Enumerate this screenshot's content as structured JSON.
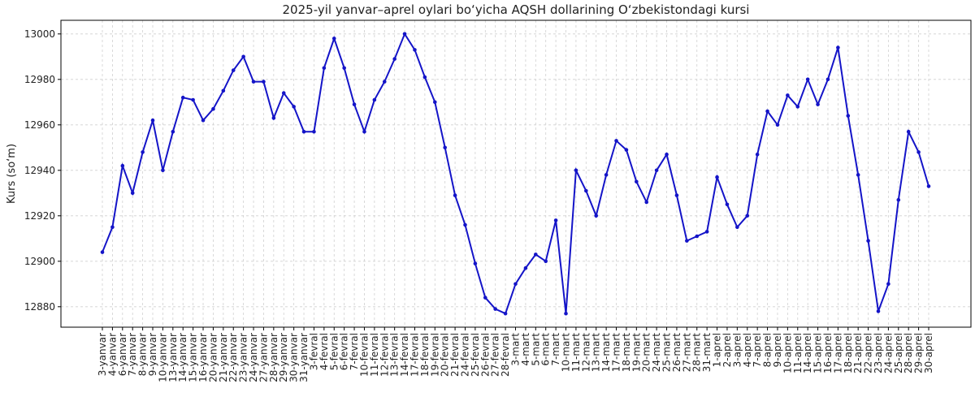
{
  "chart_data": {
    "type": "line",
    "title": "2025-yil yanvar–aprel oylari bo‘yicha AQSH dollarining O‘zbekistondagi kursi",
    "y_label": "Kurs (so‘m)",
    "categories": [
      "3-yanvar",
      "4-yanvar",
      "6-yanvar",
      "7-yanvar",
      "8-yanvar",
      "9-yanvar",
      "10-yanvar",
      "13-yanvar",
      "14-yanvar",
      "15-yanvar",
      "16-yanvar",
      "20-yanvar",
      "21-yanvar",
      "22-yanvar",
      "23-yanvar",
      "24-yanvar",
      "27-yanvar",
      "28-yanvar",
      "29-yanvar",
      "30-yanvar",
      "31-yanvar",
      "3-fevral",
      "4-fevral",
      "5-fevral",
      "6-fevral",
      "7-fevral",
      "10-fevral",
      "11-fevral",
      "12-fevral",
      "13-fevral",
      "14-fevral",
      "17-fevral",
      "18-fevral",
      "19-fevral",
      "20-fevral",
      "21-fevral",
      "24-fevral",
      "25-fevral",
      "26-fevral",
      "27-fevral",
      "28-fevral",
      "3-mart",
      "4-mart",
      "5-mart",
      "6-mart",
      "7-mart",
      "10-mart",
      "11-mart",
      "12-mart",
      "13-mart",
      "14-mart",
      "17-mart",
      "18-mart",
      "19-mart",
      "20-mart",
      "24-mart",
      "25-mart",
      "26-mart",
      "27-mart",
      "28-mart",
      "31-mart",
      "1-aprel",
      "2-aprel",
      "3-aprel",
      "4-aprel",
      "7-aprel",
      "8-aprel",
      "9-aprel",
      "10-aprel",
      "11-aprel",
      "14-aprel",
      "15-aprel",
      "16-aprel",
      "17-aprel",
      "18-aprel",
      "21-aprel",
      "22-aprel",
      "23-aprel",
      "24-aprel",
      "25-aprel",
      "28-aprel",
      "29-aprel",
      "30-aprel"
    ],
    "series": [
      {
        "name": "Kurs",
        "color": "#1414c8",
        "values": [
          12904,
          12915,
          12942,
          12930,
          12948,
          12962,
          12940,
          12957,
          12972,
          12971,
          12962,
          12967,
          12975,
          12984,
          12990,
          12979,
          12979,
          12963,
          12974,
          12968,
          12957,
          12957,
          12985,
          12998,
          12985,
          12969,
          12957,
          12971,
          12979,
          12989,
          13000,
          12993,
          12981,
          12970,
          12950,
          12929,
          12916,
          12899,
          12884,
          12879,
          12877,
          12890,
          12897,
          12903,
          12900,
          12918,
          12877,
          12940,
          12931,
          12920,
          12938,
          12953,
          12949,
          12935,
          12926,
          12940,
          12947,
          12929,
          12909,
          12911,
          12913,
          12937,
          12925,
          12915,
          12920,
          12947,
          12966,
          12960,
          12973,
          12968,
          12980,
          12969,
          12980,
          12994,
          12964,
          12938,
          12909,
          12878,
          12890,
          12927,
          12957,
          12948,
          12933
        ]
      }
    ],
    "ylim": [
      12871,
      13006
    ],
    "yticks": [
      12880,
      12900,
      12920,
      12940,
      12960,
      12980,
      13000
    ],
    "grid": true
  }
}
